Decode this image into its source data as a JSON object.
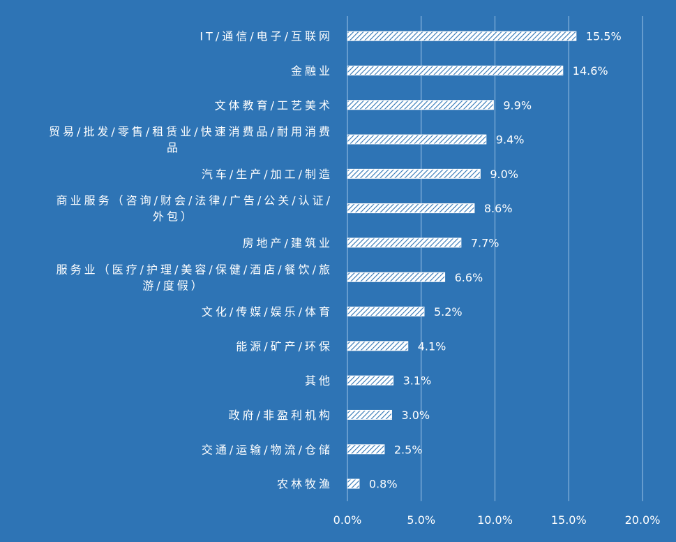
{
  "chart_data": {
    "type": "bar",
    "orientation": "horizontal",
    "categories": [
      "IT/通信/电子/互联网",
      "金融业",
      "文体教育/工艺美术",
      "贸易/批发/零售/租赁业/快速消费品/耐用消费品",
      "汽车/生产/加工/制造",
      "商业服务（咨询/财会/法律/广告/公关/认证/外包）",
      "房地产/建筑业",
      "服务业（医疗/护理/美容/保健/酒店/餐饮/旅游/度假）",
      "文化/传媒/娱乐/体育",
      "能源/矿产/环保",
      "其他",
      "政府/非盈利机构",
      "交通/运输/物流/仓储",
      "农林牧渔"
    ],
    "category_lines": [
      [
        "IT/通信/电子/互联网"
      ],
      [
        "金融业"
      ],
      [
        "文体教育/工艺美术"
      ],
      [
        "贸易/批发/零售/租赁业/快速消费品/耐用消费",
        "品"
      ],
      [
        "汽车/生产/加工/制造"
      ],
      [
        "商业服务（咨询/财会/法律/广告/公关/认证/",
        "外包）"
      ],
      [
        "房地产/建筑业"
      ],
      [
        "服务业（医疗/护理/美容/保健/酒店/餐饮/旅",
        "游/度假）"
      ],
      [
        "文化/传媒/娱乐/体育"
      ],
      [
        "能源/矿产/环保"
      ],
      [
        "其他"
      ],
      [
        "政府/非盈利机构"
      ],
      [
        "交通/运输/物流/仓储"
      ],
      [
        "农林牧渔"
      ]
    ],
    "values": [
      15.5,
      14.6,
      9.9,
      9.4,
      9.0,
      8.6,
      7.7,
      6.6,
      5.2,
      4.1,
      3.1,
      3.0,
      2.5,
      0.8
    ],
    "value_labels": [
      "15.5%",
      "14.6%",
      "9.9%",
      "9.4%",
      "9.0%",
      "8.6%",
      "7.7%",
      "6.6%",
      "5.2%",
      "4.1%",
      "3.1%",
      "3.0%",
      "2.5%",
      "0.8%"
    ],
    "xlim": [
      0,
      20
    ],
    "x_ticks": [
      0,
      5,
      10,
      15,
      20
    ],
    "x_tick_labels": [
      "0.0%",
      "5.0%",
      "10.0%",
      "15.0%",
      "20.0%"
    ],
    "grid": true,
    "legend": false,
    "colors": {
      "background": "#2e74b5",
      "bar_stroke": "#ffffff",
      "gridline": "#9dc3e6",
      "text": "#ffffff"
    }
  }
}
